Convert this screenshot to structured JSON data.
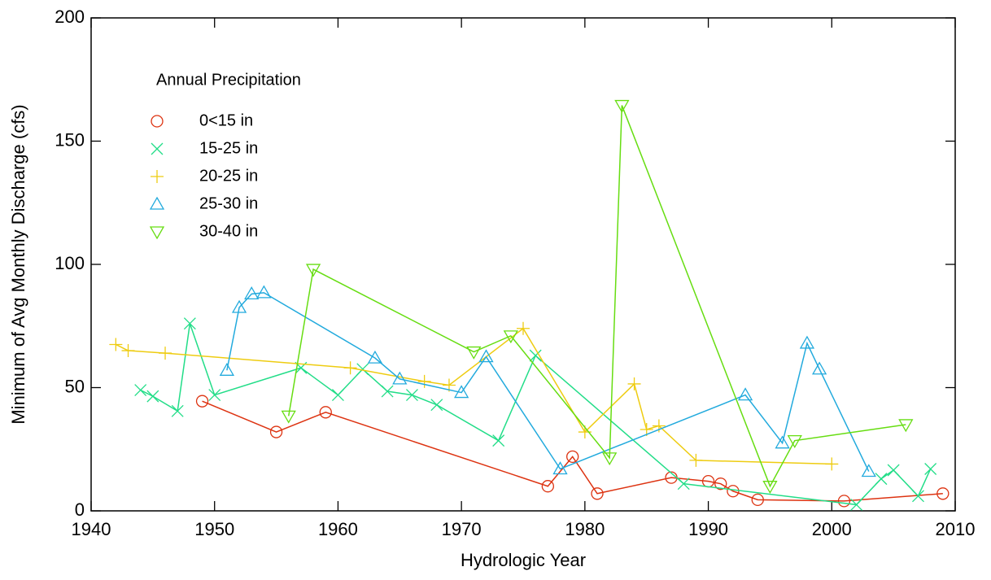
{
  "chart_data": {
    "type": "line",
    "xlabel": "Hydrologic Year",
    "ylabel": "Minimum of Avg Monthly Discharge (cfs)",
    "legend_title": "Annual Precipitation",
    "legend": "upper left",
    "xlim": [
      1940,
      2010
    ],
    "xticks": [
      1940,
      1950,
      1960,
      1970,
      1980,
      1990,
      2000,
      2010
    ],
    "ylim": [
      0,
      200
    ],
    "yticks": [
      0,
      50,
      100,
      150,
      200
    ],
    "series": [
      {
        "name": "0<15 in",
        "color": "#dd3311",
        "marker": "circle",
        "x": [
          1949,
          1955,
          1959,
          1977,
          1979,
          1981,
          1987,
          1990,
          1991,
          1992,
          1994,
          2001,
          2009
        ],
        "values": [
          44.5,
          32,
          40,
          10,
          22,
          7,
          13.5,
          12,
          11,
          8,
          4.5,
          4,
          7
        ]
      },
      {
        "name": "15-25 in",
        "color": "#22dd88",
        "marker": "x",
        "x": [
          1944,
          1945,
          1947,
          1948,
          1950,
          1957,
          1960,
          1962,
          1964,
          1966,
          1968,
          1973,
          1976,
          1988,
          2002,
          2004,
          2005,
          2007,
          2008
        ],
        "values": [
          49,
          46.5,
          40.5,
          76,
          47,
          58,
          47,
          57.5,
          48.5,
          47,
          43,
          28.5,
          63,
          11,
          2.5,
          13,
          16.5,
          6,
          17
        ]
      },
      {
        "name": "20-25 in",
        "color": "#eecc11",
        "marker": "plus",
        "x": [
          1942,
          1943,
          1946,
          1961,
          1967,
          1969,
          1975,
          1980,
          1984,
          1985,
          1986,
          1989,
          2000
        ],
        "values": [
          67.5,
          65,
          64,
          58,
          52.5,
          51,
          74,
          32,
          51.5,
          33,
          34.5,
          20.5,
          19
        ]
      },
      {
        "name": "25-30 in",
        "color": "#22aadd",
        "marker": "triangle-up",
        "x": [
          1951,
          1952,
          1953,
          1954,
          1963,
          1965,
          1970,
          1972,
          1978,
          1993,
          1996,
          1998,
          1999,
          2003
        ],
        "values": [
          57,
          82.5,
          88,
          88.5,
          62,
          53.5,
          48,
          62.5,
          17,
          47,
          27.5,
          68,
          57.5,
          16
        ]
      },
      {
        "name": "30-40 in",
        "color": "#66dd11",
        "marker": "triangle-down",
        "x": [
          1956,
          1958,
          1971,
          1974,
          1982,
          1983,
          1995,
          1997,
          2006
        ],
        "values": [
          38.5,
          98,
          64.5,
          71,
          21.5,
          164.5,
          10,
          28.5,
          35
        ]
      }
    ]
  }
}
